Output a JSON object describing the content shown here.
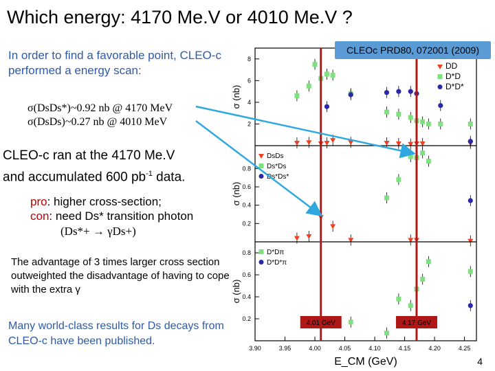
{
  "title": "Which energy: 4170 Me.V or 4010 Me.V ?",
  "intro": "In order to find a favorable point, CLEO-c performed a energy scan:",
  "cross_sections": [
    "σ(DsDs*)~0.92 nb @ 4170 MeV",
    "σ(DsDs)~0.27 nb @ 4010 MeV"
  ],
  "ran_text": {
    "line1": "CLEO-c ran at the 4170 Me.V",
    "line2_pre": "and accumulated 600 pb",
    "line2_sup": "-1",
    "line2_post": " data."
  },
  "pro_label": "pro",
  "pro_text": ": higher cross-section;",
  "con_label": "con",
  "con_text": ": need Ds* transition photon",
  "transition": "(Ds*+ → γDs+)",
  "advantage": "The advantage of 3 times larger cross section outweighted the disadvantage of having to cope with the extra γ",
  "world_class": "Many world-class results for Ds decays from CLEO-c have been published.",
  "reference": "CLEOc PRD80, 072001 (2009)",
  "page_number": "4",
  "markers": {
    "left": "4.01 GeV",
    "right": "4.17 GeV"
  },
  "colors": {
    "title": "#000000",
    "blue_text": "#2e5aa8",
    "red": "#c00000",
    "badge": "#5b9bd5",
    "marker_line": "#b01818",
    "arrow": "#2fa8e0",
    "series_red": "#f04020",
    "series_green": "#7ee07e",
    "series_blue": "#2a2aa8"
  },
  "chart_data": {
    "type": "scatter",
    "xlabel": "E_CM (GeV)",
    "xlim": [
      3.9,
      4.27
    ],
    "xticks": [
      "3.90",
      "3.95",
      "4.00",
      "4.05",
      "4.10",
      "4.15",
      "4.20",
      "4.25"
    ],
    "panels": [
      {
        "ylabel": "σ (nb)",
        "ylim": [
          0,
          9
        ],
        "yticks": [
          "2",
          "4",
          "6",
          "8"
        ],
        "series": [
          {
            "name": "DD",
            "color": "#f04020",
            "marker": "tri",
            "points": [
              [
                3.97,
                0.25
              ],
              [
                3.99,
                0.3
              ],
              [
                4.01,
                0.2
              ],
              [
                4.02,
                0.25
              ],
              [
                4.03,
                0.5
              ],
              [
                4.06,
                0.3
              ],
              [
                4.12,
                0.25
              ],
              [
                4.14,
                0.2
              ],
              [
                4.16,
                0.15
              ],
              [
                4.17,
                0.2
              ],
              [
                4.18,
                0.2
              ],
              [
                4.26,
                0.2
              ]
            ]
          },
          {
            "name": "D*D",
            "color": "#7ee07e",
            "marker": "sq",
            "points": [
              [
                3.97,
                4.6
              ],
              [
                3.99,
                5.5
              ],
              [
                4.0,
                7.5
              ],
              [
                4.01,
                6.2
              ],
              [
                4.02,
                6.6
              ],
              [
                4.03,
                6.5
              ],
              [
                4.06,
                4.8
              ],
              [
                4.12,
                3.1
              ],
              [
                4.14,
                2.9
              ],
              [
                4.16,
                2.6
              ],
              [
                4.17,
                2.3
              ],
              [
                4.18,
                2.2
              ],
              [
                4.19,
                2.0
              ],
              [
                4.21,
                2.0
              ],
              [
                4.26,
                2.0
              ]
            ]
          },
          {
            "name": "D*D*",
            "color": "#2a2aa8",
            "marker": "circ",
            "points": [
              [
                4.02,
                3.6
              ],
              [
                4.06,
                4.7
              ],
              [
                4.12,
                4.9
              ],
              [
                4.14,
                5.0
              ],
              [
                4.16,
                5.0
              ],
              [
                4.17,
                4.8
              ],
              [
                4.21,
                3.7
              ],
              [
                4.26,
                0.4
              ]
            ]
          }
        ]
      },
      {
        "ylabel": "σ (nb)",
        "ylim": [
          0,
          1.05
        ],
        "yticks": [
          "0.2",
          "0.4",
          "0.6",
          "0.8"
        ],
        "series": [
          {
            "name": "DsDs",
            "color": "#f04020",
            "marker": "tri",
            "points": [
              [
                3.97,
                0.04
              ],
              [
                3.99,
                0.06
              ],
              [
                4.01,
                0.27
              ],
              [
                4.03,
                0.17
              ],
              [
                4.06,
                0.02
              ],
              [
                4.16,
                0.02
              ],
              [
                4.17,
                0.02
              ],
              [
                4.26,
                0.01
              ]
            ]
          },
          {
            "name": "Ds*Ds",
            "color": "#7ee07e",
            "marker": "sq",
            "points": [
              [
                4.12,
                0.48
              ],
              [
                4.14,
                0.68
              ],
              [
                4.16,
                0.93
              ],
              [
                4.17,
                0.92
              ],
              [
                4.18,
                0.97
              ],
              [
                4.19,
                0.88
              ]
            ]
          },
          {
            "name": "Ds*Ds*",
            "color": "#2a2aa8",
            "marker": "circ",
            "points": [
              [
                4.26,
                0.45
              ]
            ]
          }
        ]
      },
      {
        "ylabel": "σ (nb)",
        "ylim": [
          0,
          0.9
        ],
        "yticks": [
          "0.2",
          "0.4",
          "0.6",
          "0.8"
        ],
        "series": [
          {
            "name": "D*Dπ",
            "color": "#7ee07e",
            "marker": "sq",
            "points": [
              [
                4.06,
                0.17
              ],
              [
                4.12,
                0.07
              ],
              [
                4.14,
                0.38
              ],
              [
                4.16,
                0.32
              ],
              [
                4.17,
                0.47
              ],
              [
                4.18,
                0.56
              ],
              [
                4.19,
                0.72
              ],
              [
                4.26,
                0.63
              ]
            ]
          },
          {
            "name": "D*D*π",
            "color": "#2a2aa8",
            "marker": "circ",
            "points": [
              [
                4.26,
                0.32
              ]
            ]
          }
        ]
      }
    ]
  }
}
